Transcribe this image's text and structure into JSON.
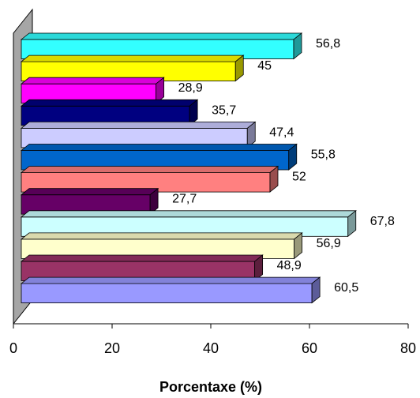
{
  "chart_data": {
    "type": "bar",
    "orientation": "horizontal",
    "style": "3d",
    "xlabel": "Porcentaxe (%)",
    "xlim": [
      0,
      80
    ],
    "x_ticks": [
      "0",
      "20",
      "40",
      "60",
      "80"
    ],
    "grid": false,
    "legend": "none",
    "bars": [
      {
        "label": "56,8",
        "value": 56.8,
        "color": "#33FFFF"
      },
      {
        "label": "45",
        "value": 45,
        "color": "#FFFF00"
      },
      {
        "label": "28,9",
        "value": 28.9,
        "color": "#FF00FF"
      },
      {
        "label": "35,7",
        "value": 35.7,
        "color": "#000080"
      },
      {
        "label": "47,4",
        "value": 47.4,
        "color": "#CCCCFF"
      },
      {
        "label": "55,8",
        "value": 55.8,
        "color": "#0066CC"
      },
      {
        "label": "52",
        "value": 52,
        "color": "#FF8080"
      },
      {
        "label": "27,7",
        "value": 27.7,
        "color": "#660066"
      },
      {
        "label": "67,8",
        "value": 67.8,
        "color": "#CCFFFF"
      },
      {
        "label": "56,9",
        "value": 56.9,
        "color": "#FFFFCC"
      },
      {
        "label": "48,9",
        "value": 48.9,
        "color": "#993366"
      },
      {
        "label": "60,5",
        "value": 60.5,
        "color": "#9999FF"
      }
    ]
  }
}
